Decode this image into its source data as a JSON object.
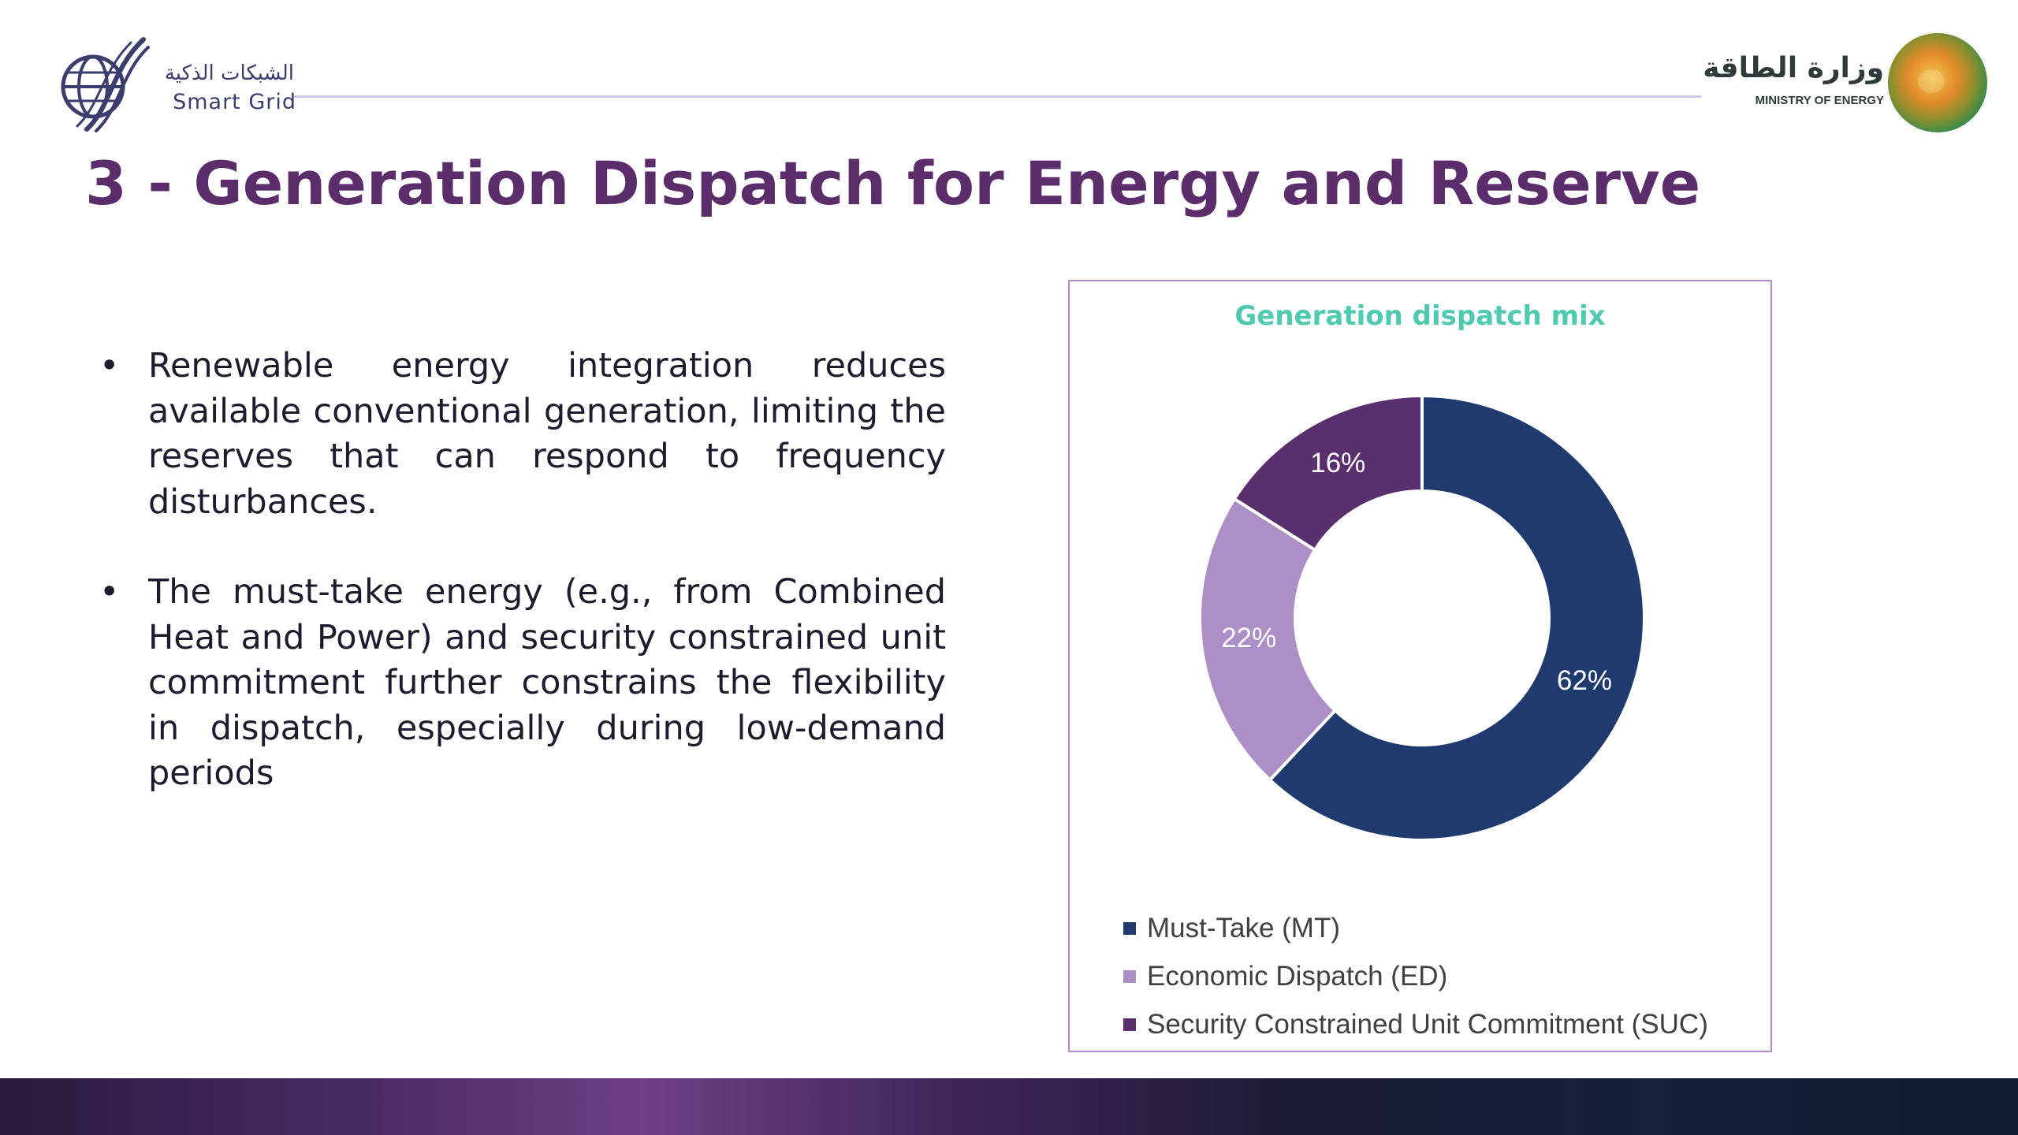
{
  "header": {
    "left_logo": {
      "arabic": "الشبكات الذكية",
      "english": "Smart Grid"
    },
    "right_logo": {
      "arabic": "وزارة الطاقة",
      "english": "MINISTRY OF ENERGY"
    }
  },
  "title": "3 - Generation Dispatch for Energy and Reserve",
  "bullets": [
    {
      "text": "Renewable energy integration reduces available conventional generation, limiting the reserves that can respond to frequency disturbances."
    },
    {
      "text": "The must-take energy (e.g., from Combined Heat and Power) and security constrained unit commitment further constrains the flexibility in dispatch, especially during low-demand periods"
    }
  ],
  "bullet_glyph": "•",
  "chart_data": {
    "type": "pie",
    "title": "Generation dispatch mix",
    "donut": true,
    "categories": [
      "Must-Take (MT)",
      "Economic Dispatch (ED)",
      "Security Constrained Unit Commitment (SUC)"
    ],
    "values": [
      62,
      22,
      16
    ],
    "labels": [
      "62%",
      "22%",
      "16%"
    ],
    "colors": [
      "#1f3a6e",
      "#ab8fc6",
      "#5a2f6e"
    ],
    "legend_position": "bottom"
  }
}
